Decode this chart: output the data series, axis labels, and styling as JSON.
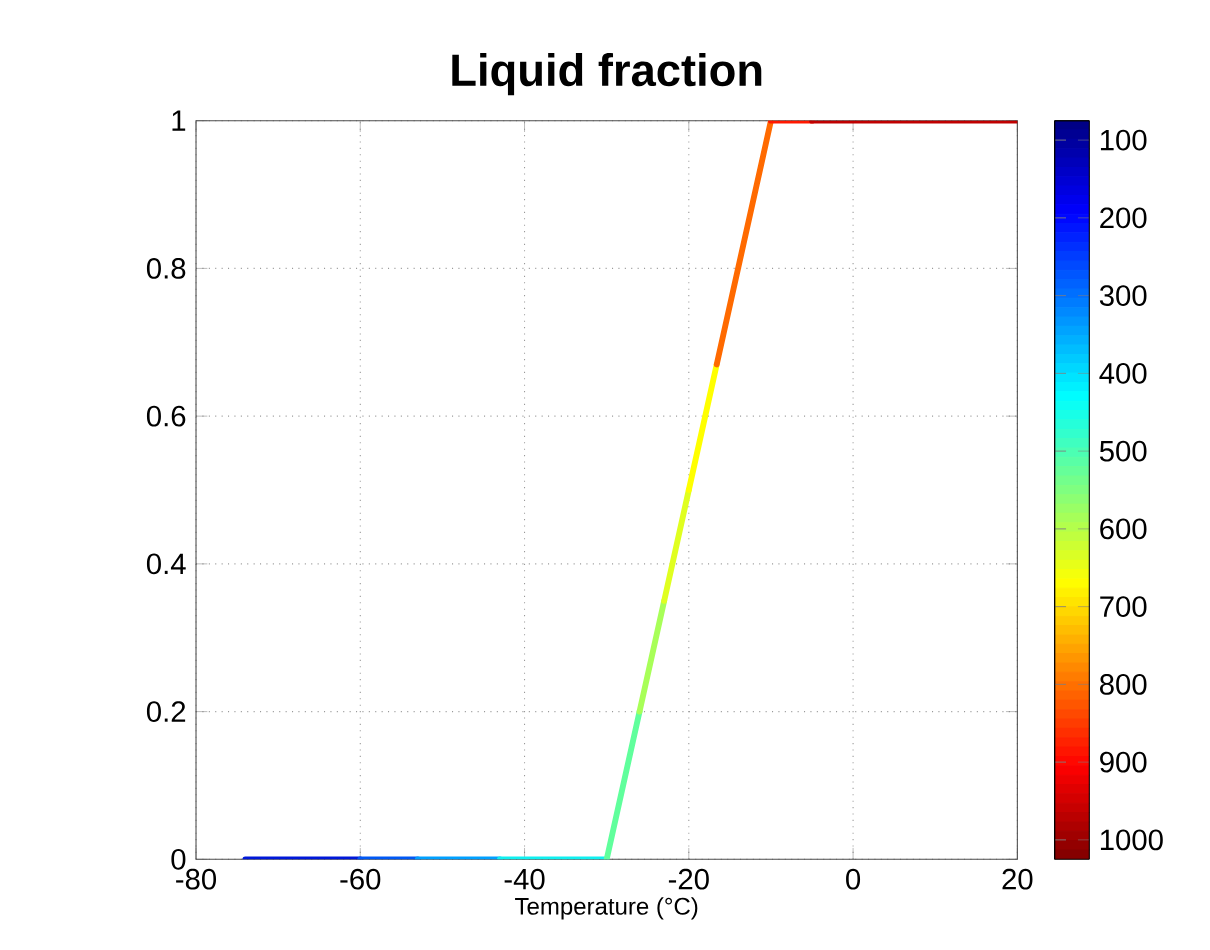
{
  "chart_data": {
    "type": "line",
    "title": "Liquid fraction",
    "xlabel": "Temperature (°C)",
    "series": [
      {
        "color": "#0018d8",
        "x": [
          -74,
          -60
        ],
        "values": [
          0,
          0
        ]
      },
      {
        "color": "#0058f4",
        "x": [
          -60,
          -53
        ],
        "values": [
          0,
          0
        ]
      },
      {
        "color": "#00a0ff",
        "x": [
          -53,
          -43
        ],
        "values": [
          0,
          0
        ]
      },
      {
        "color": "#10f0f0",
        "x": [
          -43,
          -30
        ],
        "values": [
          0,
          0
        ]
      },
      {
        "color": "#60ff9c",
        "x": [
          -30,
          -26
        ],
        "values": [
          0,
          0.2
        ]
      },
      {
        "color": "#a8ff58",
        "x": [
          -26,
          -23
        ],
        "values": [
          0.2,
          0.35
        ]
      },
      {
        "color": "#e0ff20",
        "x": [
          -23,
          -20
        ],
        "values": [
          0.35,
          0.5
        ]
      },
      {
        "color": "#ffff00",
        "x": [
          -20,
          -16.6
        ],
        "values": [
          0.5,
          0.67
        ]
      },
      {
        "color": "#ff6a00",
        "x": [
          -16.6,
          -10
        ],
        "values": [
          0.67,
          1
        ]
      },
      {
        "color": "#ff1800",
        "x": [
          -10,
          -5
        ],
        "values": [
          1,
          1
        ]
      },
      {
        "color": "#c00000",
        "x": [
          -5,
          20
        ],
        "values": [
          1,
          1
        ]
      }
    ],
    "clim": [
      75,
      1025
    ],
    "cticks": [
      100,
      200,
      300,
      400,
      500,
      600,
      700,
      800,
      900,
      1000
    ],
    "xlim": [
      -80,
      20
    ],
    "ylim": [
      0,
      1
    ],
    "xticks": [
      -80,
      -60,
      -40,
      -20,
      0,
      20
    ],
    "yticks": [
      0,
      {
        "value": 0.2,
        "label": "0.2"
      },
      {
        "value": 0.4,
        "label": "0.4"
      },
      {
        "value": 0.6,
        "label": "0.6"
      },
      {
        "value": 0.8,
        "label": "0.8"
      },
      1
    ],
    "grid": true
  }
}
